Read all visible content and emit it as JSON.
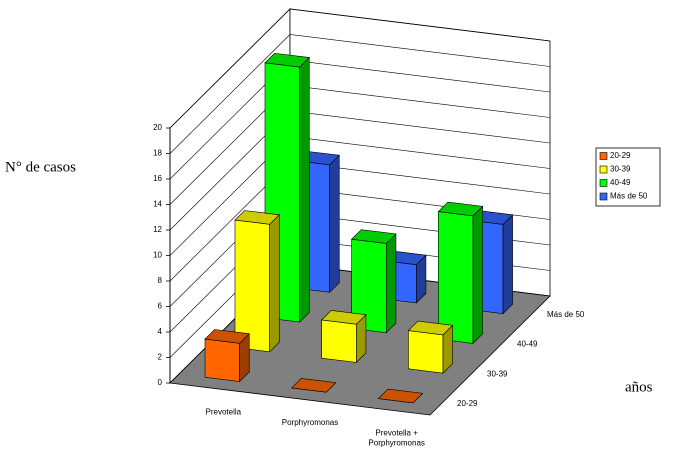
{
  "chart_data": {
    "type": "bar3d",
    "y_label": "N° de casos",
    "depth_label": "años",
    "categories": [
      "Prevotella",
      "Porphyromonas",
      "Prevotella +\nPorphyromonas"
    ],
    "series": [
      {
        "name": "20-29",
        "color": "#ff6600",
        "values": [
          3,
          0,
          0
        ]
      },
      {
        "name": "30-39",
        "color": "#ffff00",
        "values": [
          10,
          3,
          3
        ]
      },
      {
        "name": "40-49",
        "color": "#00ff00",
        "values": [
          20,
          7,
          10
        ]
      },
      {
        "name": "Más de 50",
        "color": "#3366ff",
        "values": [
          10,
          3,
          7
        ]
      }
    ],
    "ylim": [
      0,
      20
    ],
    "yticks": [
      0,
      2,
      4,
      6,
      8,
      10,
      12,
      14,
      16,
      18,
      20
    ],
    "grid": true
  }
}
